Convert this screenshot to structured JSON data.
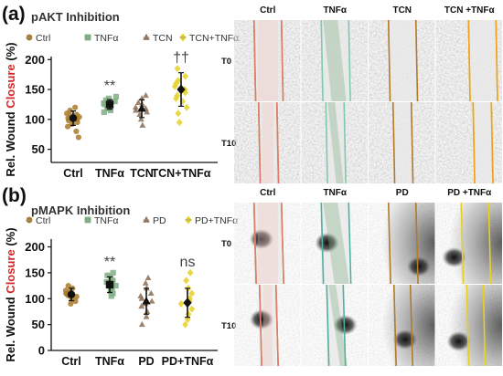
{
  "colors": {
    "ctrl": "#a87a2a",
    "tnfa": "#7fae84",
    "tcn": "#8b6d55",
    "tcn_tnfa": "#e6d024",
    "pd": "#8b6d55",
    "pd_tnfa": "#e6d024",
    "ylabel_red": "#d62728"
  },
  "chart_data": [
    {
      "type": "scatter",
      "panel_label": "(a)",
      "title": "pAKT Inhibition",
      "legend": [
        "Ctrl",
        "TNFα",
        "TCN",
        "TCN+TNFα"
      ],
      "legend_placement": "top",
      "categories": [
        "Ctrl",
        "TNFα",
        "TCN",
        "TCN+TNFα"
      ],
      "ylabel_parts": [
        "Rel. Wound ",
        "Closure",
        " (%)"
      ],
      "yticks": [
        50,
        100,
        150,
        200
      ],
      "ylim": [
        28,
        205
      ],
      "significance": [
        "",
        "**",
        "",
        "††"
      ],
      "series": [
        {
          "name": "Ctrl",
          "mean": 102,
          "sd": 12,
          "values": [
            70,
            80,
            88,
            92,
            95,
            98,
            100,
            102,
            104,
            106,
            108,
            110,
            115,
            120
          ]
        },
        {
          "name": "TNFα",
          "mean": 125,
          "sd": 8,
          "values": [
            112,
            115,
            118,
            120,
            122,
            125,
            127,
            130,
            132,
            135,
            138
          ]
        },
        {
          "name": "TCN",
          "mean": 118,
          "sd": 15,
          "values": [
            90,
            100,
            108,
            112,
            115,
            118,
            120,
            125,
            128,
            135,
            140
          ]
        },
        {
          "name": "TCN+TNFα",
          "mean": 150,
          "sd": 28,
          "values": [
            95,
            110,
            120,
            130,
            135,
            140,
            145,
            150,
            155,
            160,
            165,
            172,
            185
          ]
        }
      ]
    },
    {
      "type": "scatter",
      "panel_label": "(b)",
      "title": "pMAPK Inhibition",
      "legend": [
        "Ctrl",
        "TNFα",
        "PD",
        "PD+TNFα"
      ],
      "legend_placement": "top",
      "categories": [
        "Ctrl",
        "TNFα",
        "PD",
        "PD+TNFα"
      ],
      "ylabel_parts": [
        "Rel. Wound ",
        "Closure",
        " (%)"
      ],
      "yticks": [
        0,
        50,
        100,
        150,
        200
      ],
      "ylim": [
        0,
        215
      ],
      "significance": [
        "",
        "**",
        "",
        "ns"
      ],
      "series": [
        {
          "name": "Ctrl",
          "mean": 108,
          "sd": 12,
          "values": [
            90,
            95,
            100,
            104,
            106,
            108,
            110,
            113,
            116,
            120,
            125
          ]
        },
        {
          "name": "TNFα",
          "mean": 127,
          "sd": 15,
          "values": [
            105,
            110,
            115,
            120,
            125,
            128,
            132,
            135,
            140,
            145,
            150
          ]
        },
        {
          "name": "PD",
          "mean": 95,
          "sd": 25,
          "values": [
            50,
            65,
            75,
            85,
            90,
            95,
            100,
            105,
            110,
            120,
            130,
            140
          ]
        },
        {
          "name": "PD+TNFα",
          "mean": 92,
          "sd": 28,
          "values": [
            50,
            60,
            70,
            80,
            90,
            95,
            100,
            110,
            120,
            135,
            150
          ]
        }
      ]
    }
  ],
  "images": {
    "a": {
      "columns": [
        "Ctrl",
        "TNFα",
        "TCN",
        "TCN +TNFα"
      ],
      "rows": [
        "T0",
        "T10"
      ]
    },
    "b": {
      "columns": [
        "Ctrl",
        "TNFα",
        "PD",
        "PD +TNFα"
      ],
      "rows": [
        "T0",
        "T10"
      ]
    }
  }
}
